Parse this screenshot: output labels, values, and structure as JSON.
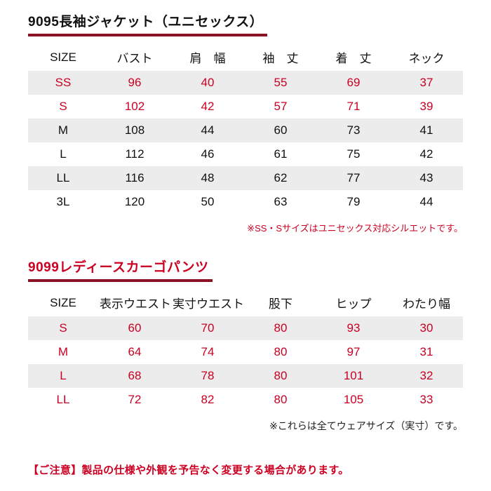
{
  "colors": {
    "red_text": "#cc0022",
    "title_rule": "#8a1426",
    "row_shade": "#ececec"
  },
  "jacket": {
    "title": "9095長袖ジャケット（ユニセックス）",
    "headers": [
      "SIZE",
      "バスト",
      "肩　幅",
      "袖　丈",
      "着　丈",
      "ネック"
    ],
    "rows": [
      [
        "SS",
        "96",
        "40",
        "55",
        "69",
        "37"
      ],
      [
        "S",
        "102",
        "42",
        "57",
        "71",
        "39"
      ],
      [
        "M",
        "108",
        "44",
        "60",
        "73",
        "41"
      ],
      [
        "L",
        "112",
        "46",
        "61",
        "75",
        "42"
      ],
      [
        "LL",
        "116",
        "48",
        "62",
        "77",
        "43"
      ],
      [
        "3L",
        "120",
        "50",
        "63",
        "79",
        "44"
      ]
    ],
    "note": "※SS・Sサイズはユニセックス対応シルエットです。"
  },
  "pants": {
    "title": "9099レディースカーゴパンツ",
    "headers": [
      "SIZE",
      "表示ウエスト",
      "実寸ウエスト",
      "股下",
      "ヒップ",
      "わたり幅"
    ],
    "rows": [
      [
        "S",
        "60",
        "70",
        "80",
        "93",
        "30"
      ],
      [
        "M",
        "64",
        "74",
        "80",
        "97",
        "31"
      ],
      [
        "L",
        "68",
        "78",
        "80",
        "101",
        "32"
      ],
      [
        "LL",
        "72",
        "82",
        "80",
        "105",
        "33"
      ]
    ],
    "note": "※これらは全てウェアサイズ（実寸）です。"
  },
  "caution": "【ご注意】製品の仕様や外観を予告なく変更する場合があります。"
}
